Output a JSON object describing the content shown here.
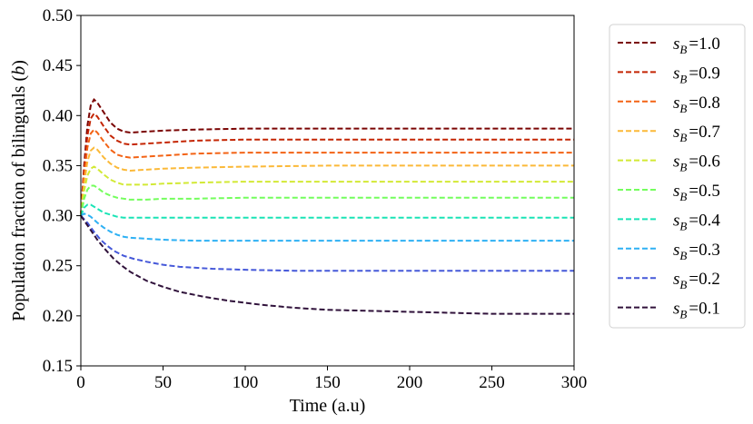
{
  "chart_data": {
    "type": "line",
    "title": "",
    "xlabel": "Time (a.u)",
    "ylabel": "Population fraction of bilinguals (b)",
    "ylabel_parts": {
      "text": "Population fraction of bilinguals (",
      "var": "b",
      "close": ")"
    },
    "xlim": [
      0,
      300
    ],
    "ylim": [
      0.15,
      0.5
    ],
    "xticks": [
      0,
      50,
      100,
      150,
      200,
      250,
      300
    ],
    "xtick_labels": [
      "0",
      "50",
      "100",
      "150",
      "200",
      "250",
      "300"
    ],
    "yticks": [
      0.15,
      0.2,
      0.25,
      0.3,
      0.35,
      0.4,
      0.45,
      0.5
    ],
    "ytick_labels": [
      "0.15",
      "0.20",
      "0.25",
      "0.30",
      "0.35",
      "0.40",
      "0.45",
      "0.50"
    ],
    "grid": false,
    "legend_position": "outside right",
    "line_style": "dashed",
    "series": [
      {
        "name": "s_B=1.0",
        "legend_sub": "B",
        "legend_value": "1.0",
        "color": "#7a0403",
        "points": [
          [
            0,
            0.3
          ],
          [
            2,
            0.35
          ],
          [
            4,
            0.39
          ],
          [
            6,
            0.41
          ],
          [
            8,
            0.416
          ],
          [
            10,
            0.413
          ],
          [
            14,
            0.403
          ],
          [
            18,
            0.393
          ],
          [
            22,
            0.387
          ],
          [
            26,
            0.384
          ],
          [
            30,
            0.383
          ],
          [
            40,
            0.384
          ],
          [
            50,
            0.385
          ],
          [
            70,
            0.386
          ],
          [
            100,
            0.387
          ],
          [
            150,
            0.387
          ],
          [
            200,
            0.387
          ],
          [
            250,
            0.387
          ],
          [
            300,
            0.387
          ]
        ]
      },
      {
        "name": "s_B=0.9",
        "legend_sub": "B",
        "legend_value": "0.9",
        "color": "#c42503",
        "points": [
          [
            0,
            0.3
          ],
          [
            2,
            0.345
          ],
          [
            4,
            0.38
          ],
          [
            6,
            0.397
          ],
          [
            8,
            0.402
          ],
          [
            10,
            0.399
          ],
          [
            14,
            0.389
          ],
          [
            18,
            0.38
          ],
          [
            22,
            0.375
          ],
          [
            26,
            0.372
          ],
          [
            30,
            0.371
          ],
          [
            40,
            0.372
          ],
          [
            50,
            0.373
          ],
          [
            70,
            0.375
          ],
          [
            100,
            0.376
          ],
          [
            150,
            0.376
          ],
          [
            200,
            0.376
          ],
          [
            250,
            0.376
          ],
          [
            300,
            0.376
          ]
        ]
      },
      {
        "name": "s_B=0.8",
        "legend_sub": "B",
        "legend_value": "0.8",
        "color": "#f36315",
        "points": [
          [
            0,
            0.3
          ],
          [
            2,
            0.34
          ],
          [
            4,
            0.368
          ],
          [
            6,
            0.382
          ],
          [
            8,
            0.386
          ],
          [
            10,
            0.383
          ],
          [
            14,
            0.374
          ],
          [
            18,
            0.366
          ],
          [
            22,
            0.361
          ],
          [
            26,
            0.359
          ],
          [
            30,
            0.358
          ],
          [
            40,
            0.359
          ],
          [
            50,
            0.36
          ],
          [
            70,
            0.362
          ],
          [
            100,
            0.363
          ],
          [
            150,
            0.363
          ],
          [
            200,
            0.363
          ],
          [
            250,
            0.363
          ],
          [
            300,
            0.363
          ]
        ]
      },
      {
        "name": "s_B=0.7",
        "legend_sub": "B",
        "legend_value": "0.7",
        "color": "#fbb938",
        "points": [
          [
            0,
            0.3
          ],
          [
            2,
            0.332
          ],
          [
            4,
            0.354
          ],
          [
            6,
            0.365
          ],
          [
            8,
            0.368
          ],
          [
            10,
            0.366
          ],
          [
            14,
            0.358
          ],
          [
            18,
            0.352
          ],
          [
            22,
            0.348
          ],
          [
            26,
            0.346
          ],
          [
            30,
            0.345
          ],
          [
            40,
            0.346
          ],
          [
            50,
            0.347
          ],
          [
            70,
            0.348
          ],
          [
            100,
            0.349
          ],
          [
            150,
            0.35
          ],
          [
            200,
            0.35
          ],
          [
            250,
            0.35
          ],
          [
            300,
            0.35
          ]
        ]
      },
      {
        "name": "s_B=0.6",
        "legend_sub": "B",
        "legend_value": "0.6",
        "color": "#d2e935",
        "points": [
          [
            0,
            0.3
          ],
          [
            2,
            0.325
          ],
          [
            4,
            0.34
          ],
          [
            6,
            0.347
          ],
          [
            8,
            0.349
          ],
          [
            10,
            0.347
          ],
          [
            14,
            0.341
          ],
          [
            18,
            0.336
          ],
          [
            22,
            0.333
          ],
          [
            26,
            0.331
          ],
          [
            30,
            0.331
          ],
          [
            40,
            0.331
          ],
          [
            50,
            0.332
          ],
          [
            70,
            0.333
          ],
          [
            100,
            0.334
          ],
          [
            150,
            0.334
          ],
          [
            200,
            0.334
          ],
          [
            250,
            0.334
          ],
          [
            300,
            0.334
          ]
        ]
      },
      {
        "name": "s_B=0.5",
        "legend_sub": "B",
        "legend_value": "0.5",
        "color": "#74fe5d",
        "points": [
          [
            0,
            0.3
          ],
          [
            2,
            0.317
          ],
          [
            4,
            0.326
          ],
          [
            6,
            0.33
          ],
          [
            8,
            0.33
          ],
          [
            10,
            0.328
          ],
          [
            14,
            0.323
          ],
          [
            18,
            0.32
          ],
          [
            22,
            0.318
          ],
          [
            26,
            0.317
          ],
          [
            30,
            0.316
          ],
          [
            40,
            0.316
          ],
          [
            50,
            0.317
          ],
          [
            70,
            0.317
          ],
          [
            100,
            0.318
          ],
          [
            150,
            0.318
          ],
          [
            200,
            0.318
          ],
          [
            250,
            0.318
          ],
          [
            300,
            0.318
          ]
        ]
      },
      {
        "name": "s_B=0.4",
        "legend_sub": "B",
        "legend_value": "0.4",
        "color": "#1ae4b6",
        "points": [
          [
            0,
            0.3
          ],
          [
            2,
            0.308
          ],
          [
            4,
            0.311
          ],
          [
            6,
            0.311
          ],
          [
            8,
            0.309
          ],
          [
            10,
            0.307
          ],
          [
            14,
            0.303
          ],
          [
            18,
            0.301
          ],
          [
            22,
            0.299
          ],
          [
            26,
            0.298
          ],
          [
            30,
            0.298
          ],
          [
            40,
            0.298
          ],
          [
            50,
            0.298
          ],
          [
            70,
            0.298
          ],
          [
            100,
            0.298
          ],
          [
            150,
            0.298
          ],
          [
            200,
            0.298
          ],
          [
            250,
            0.298
          ],
          [
            300,
            0.298
          ]
        ]
      },
      {
        "name": "s_B=0.3",
        "legend_sub": "B",
        "legend_value": "0.3",
        "color": "#2eb1f4",
        "points": [
          [
            0,
            0.3
          ],
          [
            2,
            0.302
          ],
          [
            4,
            0.301
          ],
          [
            6,
            0.299
          ],
          [
            8,
            0.296
          ],
          [
            10,
            0.293
          ],
          [
            14,
            0.288
          ],
          [
            18,
            0.284
          ],
          [
            22,
            0.281
          ],
          [
            26,
            0.279
          ],
          [
            30,
            0.278
          ],
          [
            40,
            0.277
          ],
          [
            50,
            0.276
          ],
          [
            70,
            0.275
          ],
          [
            100,
            0.275
          ],
          [
            150,
            0.275
          ],
          [
            200,
            0.275
          ],
          [
            250,
            0.275
          ],
          [
            300,
            0.275
          ]
        ]
      },
      {
        "name": "s_B=0.2",
        "legend_sub": "B",
        "legend_value": "0.2",
        "color": "#4558d9",
        "points": [
          [
            0,
            0.3
          ],
          [
            4,
            0.293
          ],
          [
            8,
            0.284
          ],
          [
            12,
            0.276
          ],
          [
            16,
            0.27
          ],
          [
            20,
            0.265
          ],
          [
            26,
            0.26
          ],
          [
            32,
            0.257
          ],
          [
            40,
            0.254
          ],
          [
            50,
            0.251
          ],
          [
            60,
            0.249
          ],
          [
            80,
            0.247
          ],
          [
            100,
            0.246
          ],
          [
            130,
            0.245
          ],
          [
            160,
            0.245
          ],
          [
            200,
            0.245
          ],
          [
            250,
            0.245
          ],
          [
            300,
            0.245
          ]
        ]
      },
      {
        "name": "s_B=0.1",
        "legend_sub": "B",
        "legend_value": "0.1",
        "color": "#30123b",
        "points": [
          [
            0,
            0.3
          ],
          [
            5,
            0.288
          ],
          [
            10,
            0.276
          ],
          [
            15,
            0.266
          ],
          [
            20,
            0.257
          ],
          [
            25,
            0.25
          ],
          [
            30,
            0.244
          ],
          [
            40,
            0.235
          ],
          [
            50,
            0.229
          ],
          [
            60,
            0.224
          ],
          [
            75,
            0.219
          ],
          [
            90,
            0.215
          ],
          [
            110,
            0.211
          ],
          [
            130,
            0.208
          ],
          [
            150,
            0.206
          ],
          [
            175,
            0.205
          ],
          [
            200,
            0.204
          ],
          [
            225,
            0.203
          ],
          [
            250,
            0.202
          ],
          [
            275,
            0.202
          ],
          [
            300,
            0.202
          ]
        ]
      }
    ]
  }
}
